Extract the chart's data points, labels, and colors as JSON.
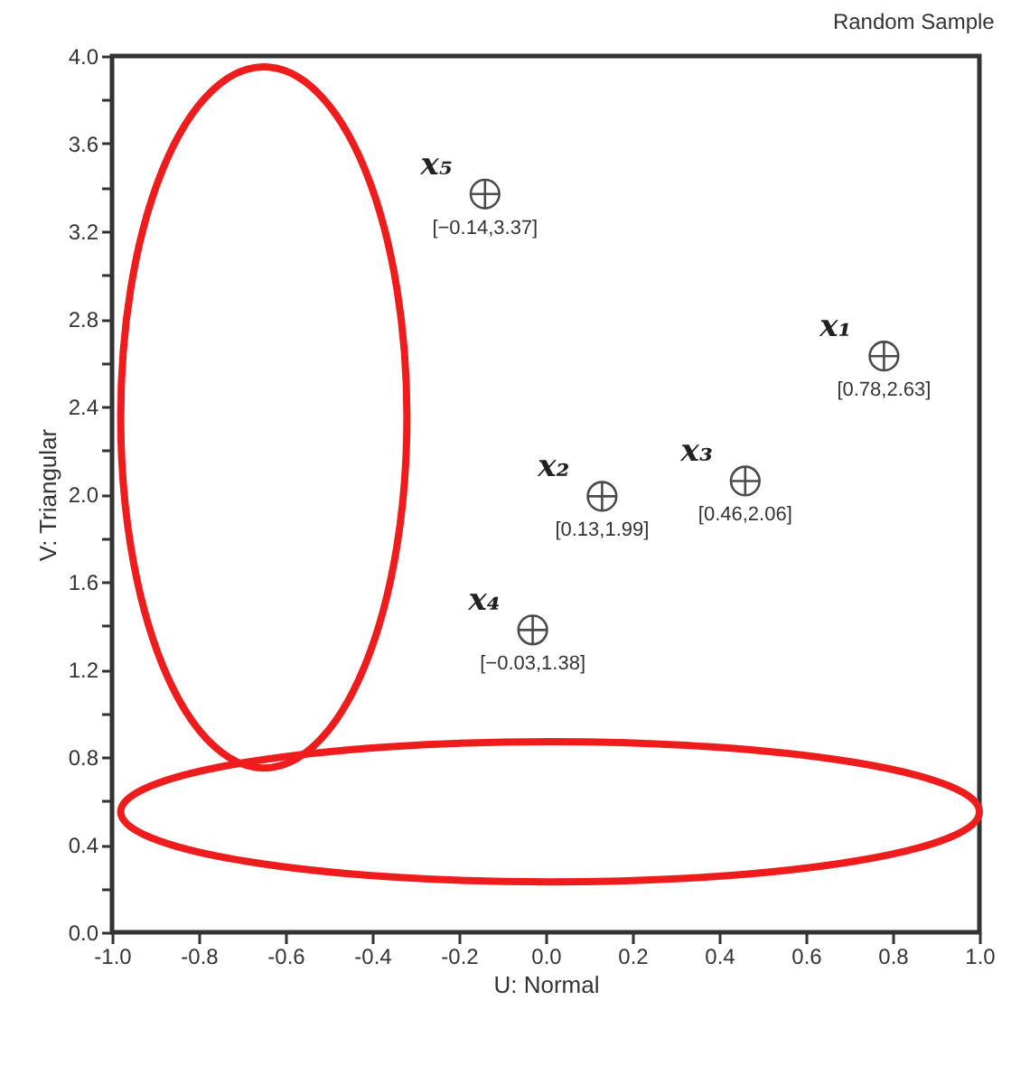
{
  "chart_data": {
    "type": "scatter",
    "title": "Random Sample",
    "xlabel": "U: Normal",
    "ylabel": "V: Triangular",
    "xlim": [
      -1.0,
      1.0
    ],
    "ylim": [
      0.0,
      4.0
    ],
    "xticks": [
      {
        "value": -1.0,
        "label": "-1.0"
      },
      {
        "value": -0.8,
        "label": "-0.8"
      },
      {
        "value": -0.6,
        "label": "-0.6"
      },
      {
        "value": -0.4,
        "label": "-0.4"
      },
      {
        "value": -0.2,
        "label": "-0.2"
      },
      {
        "value": 0,
        "label": "0.0"
      },
      {
        "value": 0.2,
        "label": "0.2"
      },
      {
        "value": 0.4,
        "label": "0.4"
      },
      {
        "value": 0.6,
        "label": "0.6"
      },
      {
        "value": 0.8,
        "label": "0.8"
      },
      {
        "value": 1.0,
        "label": "1.0"
      }
    ],
    "yticks": [
      {
        "value": 0,
        "label": "0.0"
      },
      {
        "value": 0.2,
        "label": null
      },
      {
        "value": 0.4,
        "label": "0.4"
      },
      {
        "value": 0.6,
        "label": null
      },
      {
        "value": 0.8,
        "label": "0.8"
      },
      {
        "value": 1.0,
        "label": null
      },
      {
        "value": 1.2,
        "label": "1.2"
      },
      {
        "value": 1.4,
        "label": null
      },
      {
        "value": 1.6,
        "label": "1.6"
      },
      {
        "value": 1.8,
        "label": null
      },
      {
        "value": 2.0,
        "label": "2.0"
      },
      {
        "value": 2.2,
        "label": null
      },
      {
        "value": 2.4,
        "label": "2.4"
      },
      {
        "value": 2.6,
        "label": null
      },
      {
        "value": 2.8,
        "label": "2.8"
      },
      {
        "value": 3.0,
        "label": null
      },
      {
        "value": 3.2,
        "label": "3.2"
      },
      {
        "value": 3.4,
        "label": null
      },
      {
        "value": 3.6,
        "label": "3.6"
      },
      {
        "value": 3.8,
        "label": null
      },
      {
        "value": 4.0,
        "label": "4.0"
      }
    ],
    "series": [
      {
        "name": "x₁",
        "color": "#000000",
        "x": [
          0.78
        ],
        "values": [
          2.63
        ]
      },
      {
        "name": "x₂",
        "color": "#000000",
        "x": [
          0.13
        ],
        "values": [
          1.99
        ]
      },
      {
        "name": "x₃",
        "color": "#000000",
        "x": [
          0.46
        ],
        "values": [
          2.06
        ]
      },
      {
        "name": "x₄",
        "color": "#000000",
        "x": [
          -0.03
        ],
        "values": [
          1.38
        ]
      },
      {
        "name": "x₅",
        "color": "#000000",
        "x": [
          -0.14
        ],
        "values": [
          3.37
        ]
      }
    ],
    "annotations": [
      {
        "text": "[0.78,2.63]",
        "x": 0.78,
        "y": 2.63
      },
      {
        "text": "[0.13,1.99]",
        "x": 0.13,
        "y": 1.99
      },
      {
        "text": "[0.46,2.06]",
        "x": 0.46,
        "y": 2.06
      },
      {
        "text": "[−0.03,1.38]",
        "x": -0.03,
        "y": 1.38
      },
      {
        "text": "[−0.14,3.37]",
        "x": -0.14,
        "y": 3.37
      }
    ],
    "marker": "cross",
    "grid": false,
    "legend": false
  }
}
